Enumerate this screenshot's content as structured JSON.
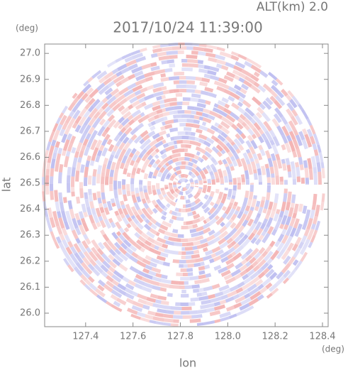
{
  "chart_data": {
    "type": "radar-ppi",
    "title": "2017/10/24 11:39:00",
    "subtitle": "ALT(km) 2.0",
    "x_label": "lon",
    "x_unit": "(deg)",
    "y_label": "lat",
    "y_unit": "(deg)",
    "xlim": [
      127.227,
      128.424
    ],
    "ylim": [
      25.948,
      27.036
    ],
    "xticks": [
      127.4,
      127.6,
      127.8,
      {
        "value": 128,
        "label": "128.0"
      },
      128.2,
      128.4
    ],
    "yticks": [
      {
        "value": 26,
        "label": "26.0"
      },
      26.1,
      26.2,
      26.3,
      26.4,
      26.5,
      26.6,
      26.7,
      26.8,
      26.9,
      {
        "value": 27,
        "label": "27.0"
      }
    ]
  }
}
